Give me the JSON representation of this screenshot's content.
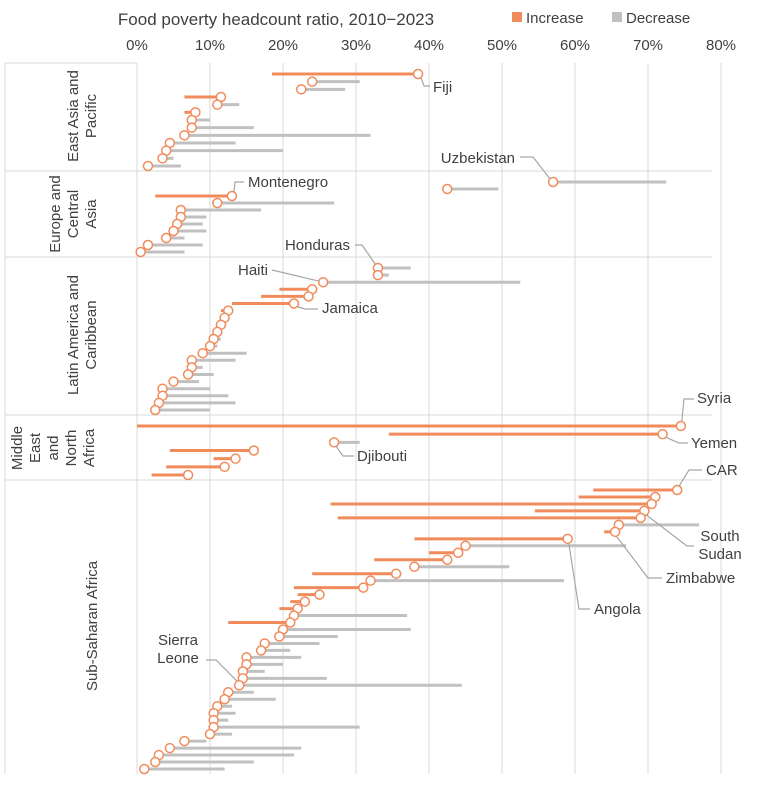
{
  "chart_data": {
    "type": "dumbbell",
    "title": "Food poverty headcount ratio, 2010−2023",
    "x_axis": {
      "min": 0,
      "max": 80,
      "ticks": [
        0,
        10,
        20,
        30,
        40,
        50,
        60,
        70,
        80
      ],
      "tick_labels": [
        "0%",
        "10%",
        "20%",
        "30%",
        "40%",
        "50%",
        "60%",
        "70%",
        "80%"
      ],
      "position": "top",
      "grid": true
    },
    "legend": {
      "position": "top-right",
      "items": [
        {
          "label": "Increase",
          "color": "#f08c5c"
        },
        {
          "label": "Decrease",
          "color": "#c0c0c0"
        }
      ]
    },
    "colors": {
      "increase": "#f08c5c",
      "decrease": "#c0c0c0",
      "marker": "#f08c5c"
    },
    "regions": [
      {
        "name_lines": [
          "East Asia and",
          "Pacific"
        ],
        "countries": [
          {
            "label": "Fiji",
            "start": 18.5,
            "end": 38.5
          },
          {
            "start": 30.5,
            "end": 24.0
          },
          {
            "start": 28.5,
            "end": 22.5
          },
          {
            "start": 6.5,
            "end": 11.5
          },
          {
            "start": 14.0,
            "end": 11.0
          },
          {
            "start": 6.5,
            "end": 8.0
          },
          {
            "start": 10.0,
            "end": 7.5
          },
          {
            "start": 16.0,
            "end": 7.5
          },
          {
            "start": 32.0,
            "end": 6.5
          },
          {
            "start": 13.5,
            "end": 4.5
          },
          {
            "start": 20.0,
            "end": 4.0
          },
          {
            "start": 5.0,
            "end": 3.5
          },
          {
            "start": 6.0,
            "end": 1.5
          }
        ]
      },
      {
        "name_lines": [
          "Europe and",
          "Central",
          "Asia"
        ],
        "countries": [
          {
            "label": "Uzbekistan",
            "start": 72.5,
            "end": 57.0
          },
          {
            "start": 49.5,
            "end": 42.5
          },
          {
            "label": "Montenegro",
            "start": 2.5,
            "end": 13.0
          },
          {
            "start": 27.0,
            "end": 11.0
          },
          {
            "start": 17.0,
            "end": 6.0
          },
          {
            "start": 9.5,
            "end": 6.0
          },
          {
            "start": 9.0,
            "end": 5.5
          },
          {
            "start": 9.5,
            "end": 5.0
          },
          {
            "start": 6.5,
            "end": 4.0
          },
          {
            "start": 9.0,
            "end": 1.5
          },
          {
            "start": 6.5,
            "end": 0.5
          }
        ]
      },
      {
        "name_lines": [
          "Latin America and",
          "Caribbean"
        ],
        "countries": [
          {
            "label": "Honduras",
            "start": 37.5,
            "end": 33.0
          },
          {
            "start": 34.5,
            "end": 33.0
          },
          {
            "label": "Haiti",
            "start": 52.5,
            "end": 25.5
          },
          {
            "start": 19.5,
            "end": 24.0
          },
          {
            "start": 17.0,
            "end": 23.5
          },
          {
            "label": "Jamaica",
            "start": 13.0,
            "end": 21.5
          },
          {
            "start": 11.5,
            "end": 12.5
          },
          {
            "start": 11.5,
            "end": 12.0
          },
          {
            "start": 11.5,
            "end": 11.5
          },
          {
            "start": 11.0,
            "end": 11.0
          },
          {
            "start": 11.5,
            "end": 10.5
          },
          {
            "start": 11.0,
            "end": 10.0
          },
          {
            "start": 15.0,
            "end": 9.0
          },
          {
            "start": 13.5,
            "end": 7.5
          },
          {
            "start": 9.0,
            "end": 7.5
          },
          {
            "start": 10.5,
            "end": 7.0
          },
          {
            "start": 8.5,
            "end": 5.0
          },
          {
            "start": 10.0,
            "end": 3.5
          },
          {
            "start": 12.5,
            "end": 3.5
          },
          {
            "start": 13.5,
            "end": 3.0
          },
          {
            "start": 10.0,
            "end": 2.5
          }
        ]
      },
      {
        "name_lines": [
          "Middle",
          "East",
          "and",
          "North",
          "Africa"
        ],
        "countries": [
          {
            "label": "Syria",
            "start": 0.0,
            "end": 74.5
          },
          {
            "label": "Yemen",
            "start": 34.5,
            "end": 72.0
          },
          {
            "label": "Djibouti",
            "start": 30.5,
            "end": 27.0
          },
          {
            "start": 4.5,
            "end": 16.0
          },
          {
            "start": 10.5,
            "end": 13.5
          },
          {
            "start": 4.0,
            "end": 12.0
          },
          {
            "start": 2.0,
            "end": 7.0
          }
        ]
      },
      {
        "name_lines": [
          "Sub-Saharan Africa"
        ],
        "countries": [
          {
            "label": "CAR",
            "start": 62.5,
            "end": 74.0
          },
          {
            "start": 60.5,
            "end": 71.0
          },
          {
            "start": 26.5,
            "end": 70.5
          },
          {
            "label": "South Sudan",
            "start": 54.5,
            "end": 69.5
          },
          {
            "start": 27.5,
            "end": 69.0
          },
          {
            "start": 77.0,
            "end": 66.0
          },
          {
            "label": "Zimbabwe",
            "start": 64.0,
            "end": 65.5
          },
          {
            "label": "Angola",
            "start": 38.0,
            "end": 59.0
          },
          {
            "start": 67.0,
            "end": 45.0
          },
          {
            "start": 40.0,
            "end": 44.0
          },
          {
            "start": 32.5,
            "end": 42.5
          },
          {
            "start": 51.0,
            "end": 38.0
          },
          {
            "start": 24.0,
            "end": 35.5
          },
          {
            "start": 58.5,
            "end": 32.0
          },
          {
            "start": 21.5,
            "end": 31.0
          },
          {
            "start": 22.0,
            "end": 25.0
          },
          {
            "start": 21.0,
            "end": 23.0
          },
          {
            "start": 19.5,
            "end": 22.0
          },
          {
            "start": 37.0,
            "end": 21.5
          },
          {
            "start": 12.5,
            "end": 21.0
          },
          {
            "start": 37.5,
            "end": 20.0
          },
          {
            "start": 27.5,
            "end": 19.5
          },
          {
            "start": 25.0,
            "end": 17.5
          },
          {
            "start": 21.0,
            "end": 17.0
          },
          {
            "start": 22.5,
            "end": 15.0
          },
          {
            "start": 20.0,
            "end": 15.0
          },
          {
            "start": 17.5,
            "end": 14.5
          },
          {
            "start": 26.0,
            "end": 14.5
          },
          {
            "label": "Sierra Leone",
            "start": 44.5,
            "end": 14.0
          },
          {
            "start": 16.0,
            "end": 12.5
          },
          {
            "start": 19.0,
            "end": 12.0
          },
          {
            "start": 13.0,
            "end": 11.0
          },
          {
            "start": 13.5,
            "end": 10.5
          },
          {
            "start": 12.5,
            "end": 10.5
          },
          {
            "start": 30.5,
            "end": 10.5
          },
          {
            "start": 13.0,
            "end": 10.0
          },
          {
            "start": 9.5,
            "end": 6.5
          },
          {
            "start": 22.5,
            "end": 4.5
          },
          {
            "start": 21.5,
            "end": 3.0
          },
          {
            "start": 16.0,
            "end": 2.5
          },
          {
            "start": 12.0,
            "end": 1.0
          }
        ]
      }
    ],
    "labels": {
      "Fiji": "Fiji",
      "Uzbekistan": "Uzbekistan",
      "Montenegro": "Montenegro",
      "Honduras": "Honduras",
      "Haiti": "Haiti",
      "Jamaica": "Jamaica",
      "Syria": "Syria",
      "Yemen": "Yemen",
      "Djibouti": "Djibouti",
      "CAR": "CAR",
      "South Sudan": [
        "South",
        "Sudan"
      ],
      "Zimbabwe": "Zimbabwe",
      "Angola": "Angola",
      "Sierra Leone": [
        "Sierra",
        "Leone"
      ]
    }
  }
}
